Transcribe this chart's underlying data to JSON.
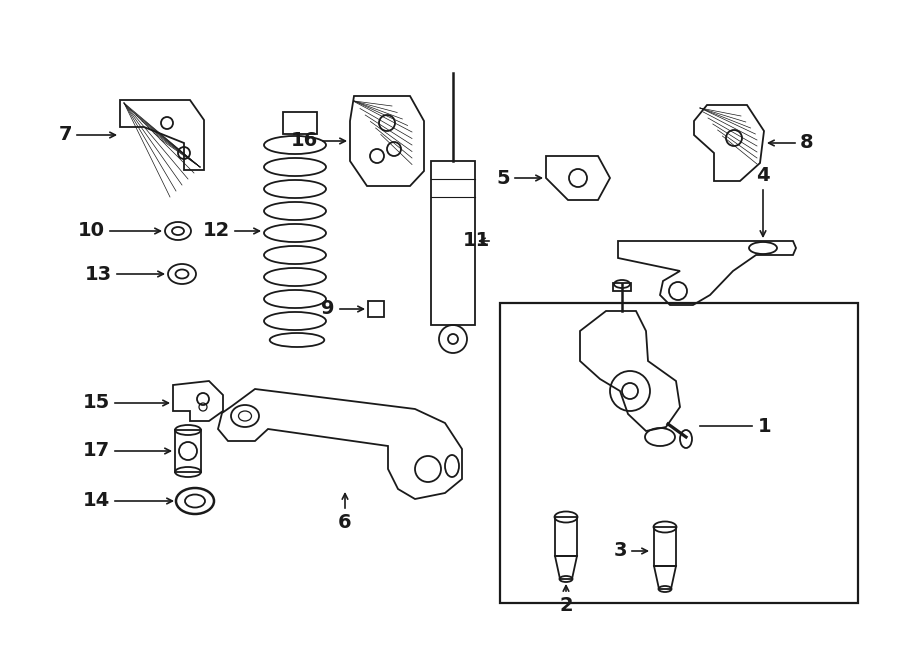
{
  "bg_color": "#ffffff",
  "line_color": "#1a1a1a",
  "fig_width": 9.0,
  "fig_height": 6.61,
  "dpi": 100,
  "lw": 1.3,
  "font_size": 14,
  "font_weight": "bold"
}
